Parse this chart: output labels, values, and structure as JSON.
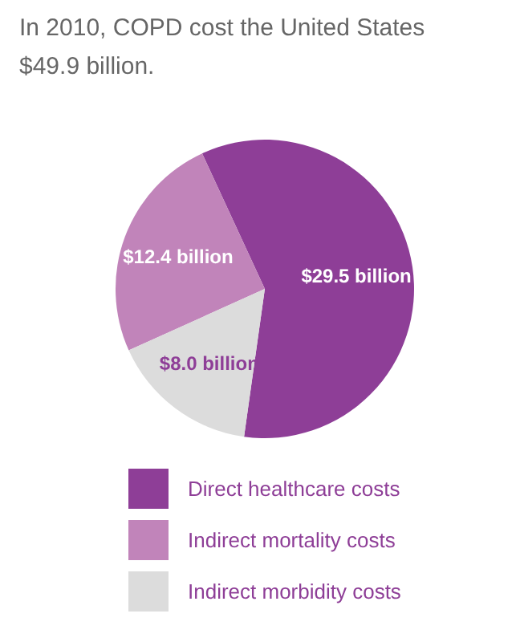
{
  "chart_data": {
    "type": "pie",
    "title": "In 2010, COPD cost the United States $49.9 billion.",
    "categories": [
      "Direct healthcare costs",
      "Indirect mortality costs",
      "Indirect morbidity costs"
    ],
    "values": [
      29.5,
      12.4,
      8.0
    ],
    "value_labels": [
      "$29.5 billion",
      "$12.4 billion",
      "$8.0 billion"
    ],
    "colors": [
      "#8e3e97",
      "#c184ba",
      "#dcdcdc"
    ],
    "legend": "bottom"
  }
}
